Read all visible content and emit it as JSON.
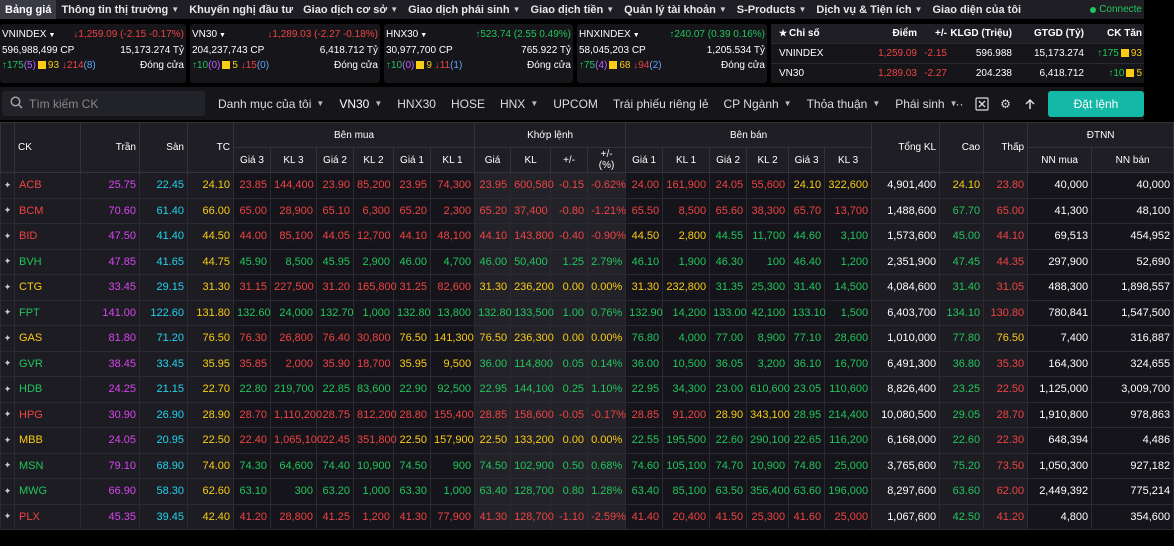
{
  "nav": {
    "items": [
      {
        "label": "Bảng giá",
        "active": true,
        "chev": false
      },
      {
        "label": "Thông tin thị trường",
        "chev": true
      },
      {
        "label": "Khuyến nghị đầu tư",
        "chev": false
      },
      {
        "label": "Giao dịch cơ sở",
        "chev": true
      },
      {
        "label": "Giao dịch phái sinh",
        "chev": true
      },
      {
        "label": "Giao dịch tiền",
        "chev": true
      },
      {
        "label": "Quản lý tài khoản",
        "chev": true
      },
      {
        "label": "S-Products",
        "chev": true
      },
      {
        "label": "Dịch vụ & Tiện ích",
        "chev": true
      },
      {
        "label": "Giao diện của tôi",
        "chev": false
      }
    ],
    "connection": "Connecte"
  },
  "indices": [
    {
      "name": "VNINDEX",
      "value": "1,259.09 (-2.15 -0.17%)",
      "dir": "down",
      "volume": "596,988,499 CP",
      "amount": "15,173.274 Tỷ",
      "up": "175",
      "ceil": "(5)",
      "unch": "93",
      "down": "214",
      "floor": "(8)",
      "status": "Đóng cửa"
    },
    {
      "name": "VN30",
      "value": "1,289.03 (-2.27 -0.18%)",
      "dir": "down",
      "volume": "204,237,743 CP",
      "amount": "6,418.712 Tỷ",
      "up": "10",
      "ceil": "(0)",
      "unch": "5",
      "down": "15",
      "floor": "(0)",
      "status": "Đóng cửa"
    },
    {
      "name": "HNX30",
      "value": "523.74 (2.55 0.49%)",
      "dir": "up",
      "volume": "30,977,700 CP",
      "amount": "765.922 Tỷ",
      "up": "10",
      "ceil": "(0)",
      "unch": "9",
      "down": "11",
      "floor": "(1)",
      "status": "Đóng cửa"
    },
    {
      "name": "HNXINDEX",
      "value": "240.07 (0.39 0.16%)",
      "dir": "up",
      "volume": "58,045,203 CP",
      "amount": "1,205.534 Tỷ",
      "up": "75",
      "ceil": "(4)",
      "unch": "68",
      "down": "94",
      "floor": "(2)",
      "status": "Đóng cửa"
    }
  ],
  "summary": {
    "headers": {
      "index": "Chỉ số",
      "point": "Điểm",
      "change": "+/-",
      "volume": "KLGD (Triệu)",
      "value": "GTGD (Tỷ)",
      "breadth": "CK Tăn"
    },
    "rows": [
      {
        "name": "VNINDEX",
        "point": "1,259.09",
        "change": "-2.15",
        "volume": "596.988",
        "value": "15,173.274",
        "up": "175",
        "unch": "93"
      },
      {
        "name": "VN30",
        "point": "1,289.03",
        "change": "-2.27",
        "volume": "204.238",
        "value": "6,418.712",
        "up": "10",
        "unch": "5"
      }
    ]
  },
  "toolbar": {
    "search_placeholder": "Tìm kiếm CK",
    "tabs": [
      {
        "label": "Danh mục của tôi",
        "chev": true
      },
      {
        "label": "VN30",
        "chev": true,
        "active": true
      },
      {
        "label": "HNX30",
        "chev": false
      },
      {
        "label": "HOSE",
        "chev": false
      },
      {
        "label": "HNX",
        "chev": true
      },
      {
        "label": "UPCOM",
        "chev": false
      },
      {
        "label": "Trái phiếu riêng lẻ",
        "chev": false
      },
      {
        "label": "CP Ngành",
        "chev": true
      },
      {
        "label": "Thỏa thuận",
        "chev": true
      },
      {
        "label": "Phái sinh",
        "chev": true
      }
    ],
    "order_button": "Đặt lệnh"
  },
  "table_headers": {
    "ck": "CK",
    "tran": "Trần",
    "san": "Sàn",
    "tc": "TC",
    "ben_mua": "Bên mua",
    "khop_lenh": "Khớp lệnh",
    "ben_ban": "Bên bán",
    "gia3": "Giá 3",
    "kl3": "KL 3",
    "gia2": "Giá 2",
    "kl2": "KL 2",
    "gia1": "Giá 1",
    "kl1": "KL 1",
    "gia": "Giá",
    "kl": "KL",
    "chg": "+/-",
    "pct": "+/-",
    "pct2": "(%)",
    "tong_kl": "Tổng KL",
    "cao": "Cao",
    "thap": "Thấp",
    "dtnn": "ĐTNN",
    "nn_mua": "NN mua",
    "nn_ban": "NN bán"
  },
  "rows": [
    {
      "sym": "ACB",
      "ref": "24.10",
      "ceil": "25.75",
      "floor": "22.45",
      "b3": "23.85",
      "bv3": "144,400",
      "b2": "23.90",
      "bv2": "85,200",
      "b1": "23.95",
      "bv1": "74,300",
      "p": "23.95",
      "v": "600,580",
      "chg": "-0.15",
      "pct": "-0.62%",
      "s1": "24.00",
      "sv1": "161,900",
      "s2": "24.05",
      "sv2": "55,600",
      "s3": "24.10",
      "sv3": "322,600",
      "tot": "4,901,400",
      "hi": "24.10",
      "lo": "23.80",
      "nnb": "40,000",
      "nns": "40,000"
    },
    {
      "sym": "BCM",
      "ref": "66.00",
      "ceil": "70.60",
      "floor": "61.40",
      "b3": "65.00",
      "bv3": "28,900",
      "b2": "65.10",
      "bv2": "6,300",
      "b1": "65.20",
      "bv1": "2,300",
      "p": "65.20",
      "v": "37,400",
      "chg": "-0.80",
      "pct": "-1.21%",
      "s1": "65.50",
      "sv1": "8,500",
      "s2": "65.60",
      "sv2": "38,300",
      "s3": "65.70",
      "sv3": "13,700",
      "tot": "1,488,600",
      "hi": "67.70",
      "lo": "65.00",
      "nnb": "41,300",
      "nns": "48,100"
    },
    {
      "sym": "BID",
      "ref": "44.50",
      "ceil": "47.50",
      "floor": "41.40",
      "b3": "44.00",
      "bv3": "85,100",
      "b2": "44.05",
      "bv2": "12,700",
      "b1": "44.10",
      "bv1": "48,100",
      "p": "44.10",
      "v": "143,800",
      "chg": "-0.40",
      "pct": "-0.90%",
      "s1": "44.50",
      "sv1": "2,800",
      "s2": "44.55",
      "sv2": "11,700",
      "s3": "44.60",
      "sv3": "3,100",
      "tot": "1,573,600",
      "hi": "45.00",
      "lo": "44.10",
      "nnb": "69,513",
      "nns": "454,952"
    },
    {
      "sym": "BVH",
      "ref": "44.75",
      "ceil": "47.85",
      "floor": "41.65",
      "b3": "45.90",
      "bv3": "8,500",
      "b2": "45.95",
      "bv2": "2,900",
      "b1": "46.00",
      "bv1": "4,700",
      "p": "46.00",
      "v": "50,400",
      "chg": "1.25",
      "pct": "2.79%",
      "s1": "46.10",
      "sv1": "1,900",
      "s2": "46.30",
      "sv2": "100",
      "s3": "46.40",
      "sv3": "1,200",
      "tot": "2,351,900",
      "hi": "47.45",
      "lo": "44.35",
      "nnb": "297,900",
      "nns": "52,690"
    },
    {
      "sym": "CTG",
      "ref": "31.30",
      "ceil": "33.45",
      "floor": "29.15",
      "b3": "31.15",
      "bv3": "227,500",
      "b2": "31.20",
      "bv2": "165,800",
      "b1": "31.25",
      "bv1": "82,600",
      "p": "31.30",
      "v": "236,200",
      "chg": "0.00",
      "pct": "0.00%",
      "s1": "31.30",
      "sv1": "232,800",
      "s2": "31.35",
      "sv2": "25,300",
      "s3": "31.40",
      "sv3": "14,500",
      "tot": "4,084,600",
      "hi": "31.40",
      "lo": "31.05",
      "nnb": "488,300",
      "nns": "1,898,557"
    },
    {
      "sym": "FPT",
      "ref": "131.80",
      "ceil": "141.00",
      "floor": "122.60",
      "b3": "132.60",
      "bv3": "24,000",
      "b2": "132.70",
      "bv2": "1,000",
      "b1": "132.80",
      "bv1": "13,800",
      "p": "132.80",
      "v": "133,500",
      "chg": "1.00",
      "pct": "0.76%",
      "s1": "132.90",
      "sv1": "14,200",
      "s2": "133.00",
      "sv2": "42,100",
      "s3": "133.10",
      "sv3": "1,500",
      "tot": "6,403,700",
      "hi": "134.10",
      "lo": "130.80",
      "nnb": "780,841",
      "nns": "1,547,500"
    },
    {
      "sym": "GAS",
      "ref": "76.50",
      "ceil": "81.80",
      "floor": "71.20",
      "b3": "76.30",
      "bv3": "26,800",
      "b2": "76.40",
      "bv2": "30,800",
      "b1": "76.50",
      "bv1": "141,300",
      "p": "76.50",
      "v": "236,300",
      "chg": "0.00",
      "pct": "0.00%",
      "s1": "76.80",
      "sv1": "4,000",
      "s2": "77.00",
      "sv2": "8,900",
      "s3": "77.10",
      "sv3": "28,600",
      "tot": "1,010,000",
      "hi": "77.80",
      "lo": "76.50",
      "nnb": "7,400",
      "nns": "316,887"
    },
    {
      "sym": "GVR",
      "ref": "35.95",
      "ceil": "38.45",
      "floor": "33.45",
      "b3": "35.85",
      "bv3": "2,000",
      "b2": "35.90",
      "bv2": "18,700",
      "b1": "35.95",
      "bv1": "9,500",
      "p": "36.00",
      "v": "114,800",
      "chg": "0.05",
      "pct": "0.14%",
      "s1": "36.00",
      "sv1": "10,500",
      "s2": "36.05",
      "sv2": "3,200",
      "s3": "36.10",
      "sv3": "16,700",
      "tot": "6,491,300",
      "hi": "36.80",
      "lo": "35.30",
      "nnb": "164,300",
      "nns": "324,655"
    },
    {
      "sym": "HDB",
      "ref": "22.70",
      "ceil": "24.25",
      "floor": "21.15",
      "b3": "22.80",
      "bv3": "219,700",
      "b2": "22.85",
      "bv2": "83,600",
      "b1": "22.90",
      "bv1": "92,500",
      "p": "22.95",
      "v": "144,100",
      "chg": "0.25",
      "pct": "1.10%",
      "s1": "22.95",
      "sv1": "34,300",
      "s2": "23.00",
      "sv2": "610,600",
      "s3": "23.05",
      "sv3": "110,600",
      "tot": "8,826,400",
      "hi": "23.25",
      "lo": "22.50",
      "nnb": "1,125,000",
      "nns": "3,009,700"
    },
    {
      "sym": "HPG",
      "ref": "28.90",
      "ceil": "30.90",
      "floor": "26.90",
      "b3": "28.70",
      "bv3": "1,110,200",
      "b2": "28.75",
      "bv2": "812,200",
      "b1": "28.80",
      "bv1": "155,400",
      "p": "28.85",
      "v": "158,600",
      "chg": "-0.05",
      "pct": "-0.17%",
      "s1": "28.85",
      "sv1": "91,200",
      "s2": "28.90",
      "sv2": "343,100",
      "s3": "28.95",
      "sv3": "214,400",
      "tot": "10,080,500",
      "hi": "29.05",
      "lo": "28.70",
      "nnb": "1,910,800",
      "nns": "978,863"
    },
    {
      "sym": "MBB",
      "ref": "22.50",
      "ceil": "24.05",
      "floor": "20.95",
      "b3": "22.40",
      "bv3": "1,065,100",
      "b2": "22.45",
      "bv2": "351,800",
      "b1": "22.50",
      "bv1": "157,900",
      "p": "22.50",
      "v": "133,200",
      "chg": "0.00",
      "pct": "0.00%",
      "s1": "22.55",
      "sv1": "195,500",
      "s2": "22.60",
      "sv2": "290,100",
      "s3": "22.65",
      "sv3": "116,200",
      "tot": "6,168,000",
      "hi": "22.60",
      "lo": "22.30",
      "nnb": "648,394",
      "nns": "4,486"
    },
    {
      "sym": "MSN",
      "ref": "74.00",
      "ceil": "79.10",
      "floor": "68.90",
      "b3": "74.30",
      "bv3": "64,600",
      "b2": "74.40",
      "bv2": "10,900",
      "b1": "74.50",
      "bv1": "900",
      "p": "74.50",
      "v": "102,900",
      "chg": "0.50",
      "pct": "0.68%",
      "s1": "74.60",
      "sv1": "105,100",
      "s2": "74.70",
      "sv2": "10,900",
      "s3": "74.80",
      "sv3": "25,000",
      "tot": "3,765,600",
      "hi": "75.20",
      "lo": "73.50",
      "nnb": "1,050,300",
      "nns": "927,182"
    },
    {
      "sym": "MWG",
      "ref": "62.60",
      "ceil": "66.90",
      "floor": "58.30",
      "b3": "63.10",
      "bv3": "300",
      "b2": "63.20",
      "bv2": "1,000",
      "b1": "63.30",
      "bv1": "1,000",
      "p": "63.40",
      "v": "128,700",
      "chg": "0.80",
      "pct": "1.28%",
      "s1": "63.40",
      "sv1": "85,100",
      "s2": "63.50",
      "sv2": "356,400",
      "s3": "63.60",
      "sv3": "196,000",
      "tot": "8,297,600",
      "hi": "63.60",
      "lo": "62.00",
      "nnb": "2,449,392",
      "nns": "775,214"
    },
    {
      "sym": "PLX",
      "ref": "42.40",
      "ceil": "45.35",
      "floor": "39.45",
      "b3": "41.20",
      "bv3": "28,800",
      "b2": "41.25",
      "bv2": "1,200",
      "b1": "41.30",
      "bv1": "77,900",
      "p": "41.30",
      "v": "128,700",
      "chg": "-1.10",
      "pct": "-2.59%",
      "s1": "41.40",
      "sv1": "20,400",
      "s2": "41.50",
      "sv2": "25,300",
      "s3": "41.60",
      "sv3": "25,000",
      "tot": "1,067,600",
      "hi": "42.50",
      "lo": "41.20",
      "nnb": "4,800",
      "nns": "354,600"
    }
  ],
  "colors": {
    "up": "#22c55e",
    "down": "#ef4444",
    "ref": "#facc15",
    "ceil": "#d946ef",
    "floor": "#22d3ee",
    "accent": "#14b8a6"
  }
}
